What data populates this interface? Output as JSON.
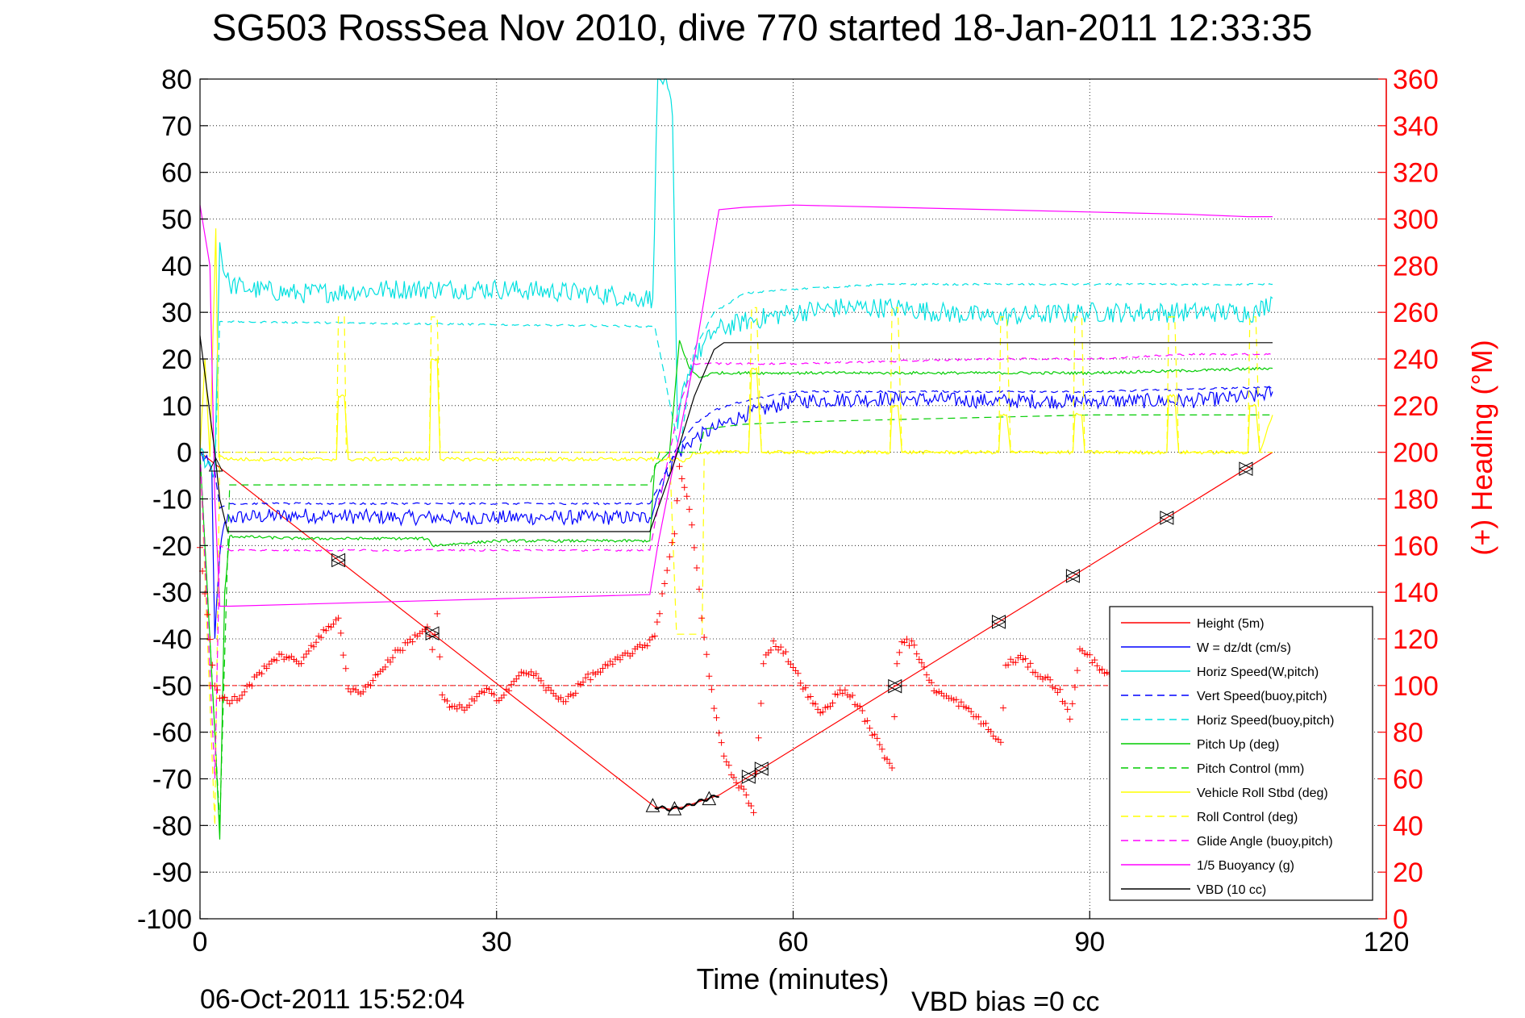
{
  "chart_data": {
    "type": "line",
    "title": "SG503 RossSea Nov 2010, dive 770 started 18-Jan-2011 12:33:35",
    "xlabel": "Time (minutes)",
    "ylabel_right": "(+) Heading (°M)",
    "xlim": [
      0,
      120
    ],
    "ylim_left": [
      -100,
      80
    ],
    "ylim_right": [
      0,
      360
    ],
    "xticks": [
      0,
      30,
      60,
      90,
      120
    ],
    "yticks_left": [
      80,
      70,
      60,
      50,
      40,
      30,
      20,
      10,
      0,
      -10,
      -20,
      -30,
      -40,
      -50,
      -60,
      -70,
      -80,
      -90,
      -100
    ],
    "yticks_right": [
      360,
      340,
      320,
      300,
      280,
      260,
      240,
      220,
      200,
      180,
      160,
      140,
      120,
      100,
      80,
      60,
      40,
      20,
      0
    ],
    "grid": true,
    "legend_position": "bottom-right",
    "footer_left": "06-Oct-2011 15:52:04",
    "footer_right": "VBD bias =0 cc",
    "legend": [
      {
        "label": "Height (5m)",
        "color": "#ff0000",
        "dash": "solid"
      },
      {
        "label": "W = dz/dt (cm/s)",
        "color": "#0000ff",
        "dash": "solid"
      },
      {
        "label": "Horiz Speed(W,pitch)",
        "color": "#00e0e0",
        "dash": "solid"
      },
      {
        "label": "Vert Speed(buoy,pitch)",
        "color": "#0000ff",
        "dash": "dashed"
      },
      {
        "label": "Horiz Speed(buoy,pitch)",
        "color": "#00e0e0",
        "dash": "dashed"
      },
      {
        "label": "Pitch Up (deg)",
        "color": "#00cc00",
        "dash": "solid"
      },
      {
        "label": "Pitch Control (mm)",
        "color": "#00cc00",
        "dash": "dashed"
      },
      {
        "label": "Vehicle Roll Stbd (deg)",
        "color": "#ffff00",
        "dash": "solid"
      },
      {
        "label": "Roll Control (deg)",
        "color": "#ffff00",
        "dash": "dashed"
      },
      {
        "label": "Glide Angle (buoy,pitch)",
        "color": "#ff00ff",
        "dash": "dashed"
      },
      {
        "label": "1/5 Buoyancy (g)",
        "color": "#ff00ff",
        "dash": "solid"
      },
      {
        "label": "VBD (10 cc)",
        "color": "#000000",
        "dash": "solid"
      }
    ],
    "series": [
      {
        "name": "Height (5m)",
        "color": "#ff0000",
        "dash": "solid",
        "x": [
          0,
          46,
          47.5,
          49,
          51,
          52.5,
          108.5
        ],
        "y": [
          0,
          -76,
          -76.5,
          -76,
          -74.5,
          -73.5,
          0
        ]
      },
      {
        "name": "W = dz/dt (cm/s)",
        "color": "#0000ff",
        "dash": "solid",
        "noise": 1.6,
        "x": [
          0,
          1.2,
          1.5,
          2,
          2.5,
          3,
          10,
          20,
          30,
          40,
          45.5,
          46.5,
          48,
          50,
          52,
          55,
          60,
          70,
          80,
          90,
          100,
          107,
          108.5
        ],
        "y": [
          0,
          -4,
          -40,
          -22,
          -15,
          -14,
          -13.5,
          -14,
          -14,
          -14,
          -14,
          -8,
          -1,
          3,
          5,
          8,
          11,
          11.5,
          11,
          11,
          11,
          12,
          13
        ]
      },
      {
        "name": "Horiz Speed(W,pitch)",
        "color": "#00e0e0",
        "dash": "solid",
        "noise": 2.2,
        "x": [
          0,
          1.5,
          2,
          2.5,
          3,
          5,
          10,
          20,
          30,
          40,
          45,
          45.8,
          46.3,
          47,
          47.8,
          48.3,
          49,
          50,
          52,
          55,
          60,
          65,
          70,
          80,
          90,
          100,
          107,
          108.5
        ],
        "y": [
          0,
          -4,
          45,
          38,
          36,
          35,
          34,
          35,
          35,
          34,
          33,
          33,
          80,
          80,
          72,
          5,
          15,
          20,
          26,
          28,
          30,
          31,
          31,
          29,
          30,
          30,
          30,
          33
        ]
      },
      {
        "name": "Vert Speed(buoy,pitch)",
        "color": "#0000ff",
        "dash": "dashed",
        "noise": 0.2,
        "x": [
          0,
          1.5,
          2,
          3,
          45.5,
          46.5,
          48,
          50,
          52,
          55,
          60,
          70,
          80,
          90,
          100,
          108.5
        ],
        "y": [
          0,
          -4,
          -12,
          -11,
          -11,
          -7,
          0,
          6,
          9,
          11,
          13,
          13,
          13,
          13,
          13.5,
          14
        ]
      },
      {
        "name": "Horiz Speed(buoy,pitch)",
        "color": "#00e0e0",
        "dash": "dashed",
        "noise": 0.2,
        "x": [
          0,
          1.5,
          2,
          3,
          45.5,
          46,
          48.5,
          50,
          52,
          55,
          60,
          70,
          80,
          90,
          100,
          108.5
        ],
        "y": [
          0,
          -4,
          28,
          28,
          27,
          27,
          0,
          22,
          30,
          34,
          35,
          36,
          36,
          36,
          36,
          36
        ]
      },
      {
        "name": "Pitch Up (deg)",
        "color": "#00cc00",
        "dash": "solid",
        "noise": 0.3,
        "x": [
          0,
          1.5,
          2,
          2.5,
          3,
          10,
          23,
          23.5,
          30,
          45.5,
          46,
          47.5,
          48.5,
          49.5,
          50.5,
          52,
          60,
          70,
          80,
          90,
          100,
          108.5
        ],
        "y": [
          0,
          -60,
          -83,
          -30,
          -18,
          -18.5,
          -18.5,
          -20,
          -19,
          -19,
          -3,
          0,
          24,
          18,
          16,
          17,
          17,
          17,
          17,
          17,
          17.5,
          18
        ]
      },
      {
        "name": "Pitch Control (mm)",
        "color": "#00cc00",
        "dash": "dashed",
        "noise": 0,
        "x": [
          0,
          1.5,
          2,
          3,
          45.5,
          46.5,
          50.5,
          51,
          55,
          60,
          70,
          80,
          90,
          100,
          108.5
        ],
        "y": [
          0,
          -60,
          -80,
          -7,
          -7,
          0,
          0,
          5,
          6,
          6.5,
          7,
          7.5,
          8,
          8,
          8
        ]
      },
      {
        "name": "Vehicle Roll Stbd (deg)",
        "color": "#ffff00",
        "dash": "solid",
        "noise": 0.4,
        "x": [
          0,
          0.5,
          1,
          1.6,
          1.9,
          2.3,
          3,
          13.8,
          14,
          14.6,
          15,
          23.2,
          23.4,
          24,
          24.3,
          45.5,
          47,
          48,
          49,
          50,
          51,
          55.5,
          55.8,
          56.3,
          56.8,
          69.8,
          70,
          70.6,
          71,
          80.8,
          81,
          81.6,
          82,
          88.3,
          88.5,
          89.2,
          89.5,
          97.8,
          98,
          98.6,
          99,
          106,
          106.2,
          106.8,
          107.2,
          108.5
        ],
        "y": [
          0,
          20,
          -1,
          48,
          -1,
          -1,
          -1.5,
          -1.5,
          12,
          12,
          -1.5,
          -1.5,
          20,
          20,
          -1.5,
          -1.5,
          -1.5,
          -1.5,
          -2,
          0,
          0,
          0,
          18,
          18,
          0,
          0,
          10,
          10,
          0,
          0,
          8,
          8,
          0,
          0,
          8,
          8,
          0,
          0,
          12,
          12,
          0,
          0,
          10,
          10,
          0,
          8
        ]
      },
      {
        "name": "Roll Control (deg)",
        "color": "#ffff00",
        "dash": "dashed",
        "noise": 0,
        "x": [
          0,
          1.5,
          2,
          13.8,
          14,
          14.6,
          14.8,
          23.2,
          23.4,
          24,
          24.3,
          45.5,
          47.5,
          48.2,
          48.5,
          49.5,
          50.8,
          51,
          55.5,
          55.8,
          56.3,
          56.8,
          69.8,
          70,
          70.6,
          71,
          80.8,
          81,
          81.6,
          82,
          88.3,
          88.5,
          89.2,
          89.5,
          97.8,
          98,
          98.6,
          99,
          106,
          106.2,
          106.8,
          107.2,
          108.5
        ],
        "y": [
          0,
          -80,
          0,
          0,
          29,
          29,
          0,
          0,
          29,
          29,
          0,
          0,
          0,
          -39,
          -39,
          -39,
          -39,
          0,
          0,
          31,
          31,
          0,
          0,
          31,
          31,
          0,
          0,
          29,
          29,
          0,
          0,
          29,
          29,
          0,
          0,
          29,
          29,
          0,
          0,
          29,
          29,
          0,
          0
        ]
      },
      {
        "name": "Glide Angle (buoy,pitch)",
        "color": "#ff00ff",
        "dash": "dashed",
        "noise": 0.2,
        "x": [
          0,
          1.5,
          2,
          3,
          45.5,
          46.5,
          48.5,
          50,
          52,
          56,
          60,
          70,
          80,
          90,
          100,
          108.5
        ],
        "y": [
          0,
          -70,
          -20,
          -21,
          -21,
          -10,
          10,
          19,
          19,
          19,
          19,
          19.5,
          20,
          20,
          21,
          21
        ]
      },
      {
        "name": "1/5 Buoyancy (g)",
        "color": "#ff00ff",
        "dash": "solid",
        "noise": 0,
        "x": [
          0,
          1,
          1.5,
          2,
          3,
          20,
          45.5,
          46.3,
          50,
          52.5,
          55,
          60,
          70,
          80,
          90,
          100,
          106,
          108.5
        ],
        "y": [
          53,
          40,
          -10,
          -33,
          -33,
          -32,
          -30.5,
          -20,
          20,
          52,
          52.5,
          53,
          52.5,
          52,
          51.5,
          51,
          50.5,
          50.5
        ]
      },
      {
        "name": "VBD (10 cc)",
        "color": "#000000",
        "dash": "solid",
        "noise": 0,
        "x": [
          0,
          1.5,
          2,
          2.8,
          45.5,
          46.5,
          48,
          50,
          52,
          53,
          60,
          70,
          80,
          90,
          100,
          108.5
        ],
        "y": [
          25,
          0,
          -10,
          -17,
          -17,
          -11,
          -2,
          12,
          22,
          23.5,
          23.5,
          23.5,
          23.5,
          23.5,
          23.5,
          23.5
        ]
      },
      {
        "name": "Heading",
        "axis": "right",
        "color": "#ff0000",
        "style": "markers",
        "x": [
          0,
          0.5,
          1,
          1.5,
          2,
          3,
          4,
          5,
          6,
          7,
          8,
          9,
          10,
          11,
          12,
          13,
          13.5,
          14,
          15,
          16,
          17,
          18,
          19,
          20,
          21,
          22,
          23,
          23.5,
          24,
          24.5,
          25,
          26,
          27,
          28,
          29,
          30,
          31,
          32,
          33,
          34,
          35,
          36,
          37,
          38,
          39,
          40,
          41,
          42,
          43,
          44,
          45,
          46,
          46.5,
          47,
          48,
          48.5,
          49,
          49.5,
          50,
          51,
          52,
          53,
          54,
          55,
          56,
          57,
          57.5,
          58,
          59,
          60,
          61,
          62,
          63,
          64,
          65,
          66,
          67,
          68,
          69,
          70,
          70.5,
          71,
          72,
          73,
          74,
          75,
          76,
          77,
          78,
          79,
          80,
          81,
          81.5,
          82,
          83,
          84,
          85,
          86,
          87,
          88,
          88.5,
          89,
          90,
          91,
          92
        ],
        "y": [
          160,
          140,
          120,
          100,
          95,
          93,
          95,
          100,
          105,
          110,
          112,
          113,
          108,
          116,
          120,
          125,
          127,
          130,
          98,
          97,
          100,
          105,
          110,
          115,
          118,
          122,
          125,
          115,
          130,
          95,
          92,
          90,
          91,
          95,
          98,
          94,
          98,
          103,
          106,
          104,
          99,
          95,
          94,
          98,
          103,
          105,
          108,
          110,
          113,
          115,
          117,
          122,
          132,
          145,
          165,
          195,
          185,
          175,
          160,
          120,
          90,
          70,
          60,
          55,
          45,
          110,
          115,
          118,
          115,
          108,
          100,
          92,
          88,
          94,
          98,
          95,
          88,
          80,
          72,
          65,
          110,
          120,
          118,
          110,
          100,
          96,
          94,
          92,
          88,
          85,
          80,
          75,
          108,
          110,
          112,
          108,
          104,
          102,
          97,
          86,
          100,
          115,
          112,
          108,
          105
        ]
      }
    ]
  }
}
